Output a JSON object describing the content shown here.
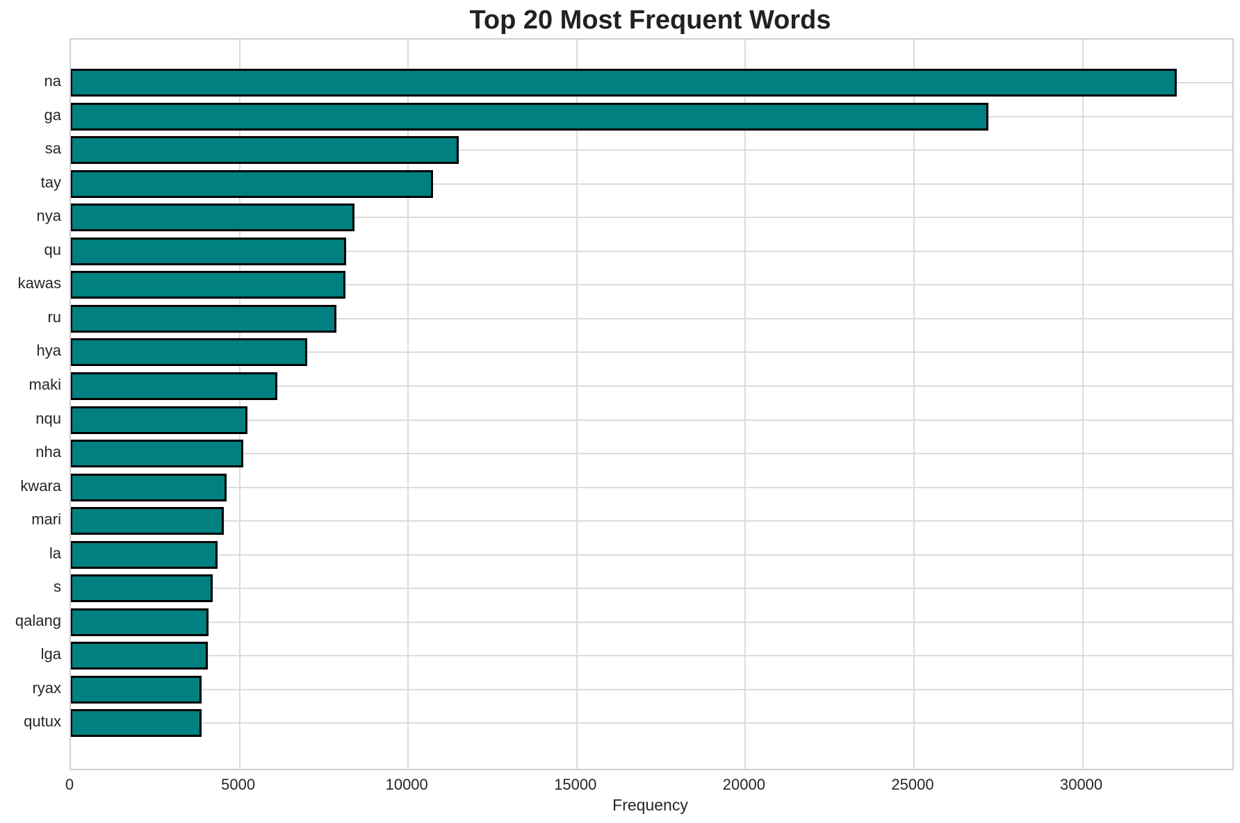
{
  "chart_data": {
    "type": "bar",
    "orientation": "horizontal",
    "title": "Top 20 Most Frequent Words",
    "xlabel": "Frequency",
    "ylabel": "",
    "categories": [
      "na",
      "ga",
      "sa",
      "tay",
      "nya",
      "qu",
      "kawas",
      "ru",
      "hya",
      "maki",
      "nqu",
      "nha",
      "kwara",
      "mari",
      "la",
      "s",
      "qalang",
      "lga",
      "ryax",
      "qutux"
    ],
    "values": [
      32800,
      27200,
      11500,
      10740,
      8410,
      8170,
      8150,
      7880,
      7010,
      6120,
      5230,
      5120,
      4620,
      4530,
      4350,
      4200,
      4090,
      4060,
      3880,
      3870
    ],
    "x_ticks": [
      0,
      5000,
      10000,
      15000,
      20000,
      25000,
      30000
    ],
    "xlim": [
      0,
      34440
    ],
    "grid": true,
    "legend": null,
    "bar_color": "#008080",
    "bar_edge_color": "#000000",
    "grid_color": "#dcdcdc",
    "background_color": "#ffffff",
    "text_color": "#262626"
  }
}
